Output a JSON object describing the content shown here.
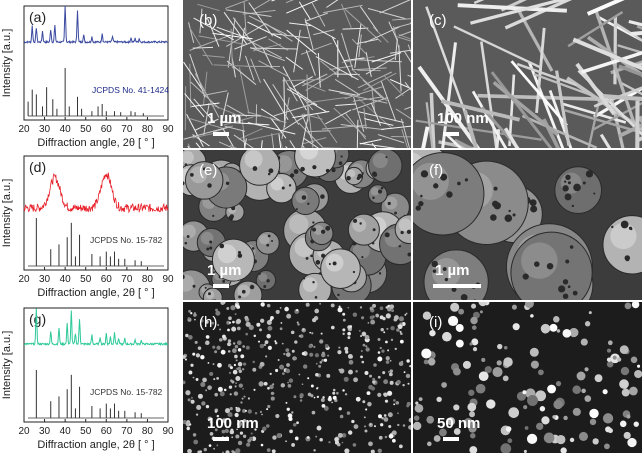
{
  "figure": {
    "xrd_panels": [
      {
        "label": "(a)",
        "reference": "JCPDS No. 41-1424",
        "sample_color": "#3b4aa0",
        "ref_color": "#333333"
      },
      {
        "label": "(d)",
        "reference": "JCPDS No. 15-782",
        "sample_color": "#e8202a",
        "ref_color": "#333333"
      },
      {
        "label": "(g)",
        "reference": "JCPDS No. 15-782",
        "sample_color": "#2fc99a",
        "ref_color": "#333333"
      }
    ],
    "sem_panels": [
      {
        "label": "(b)",
        "scale": "1 µm",
        "texture": "wires"
      },
      {
        "label": "(c)",
        "scale": "100 nm",
        "texture": "wires-zoom"
      },
      {
        "label": "(e)",
        "scale": "1 µm",
        "texture": "spheres"
      },
      {
        "label": "(f)",
        "scale": "1 µm",
        "texture": "spheres-zoom"
      },
      {
        "label": "(h)",
        "scale": "100 nm",
        "texture": "dots"
      },
      {
        "label": "(i)",
        "scale": "50 nm",
        "texture": "dots-zoom"
      }
    ],
    "axis": {
      "ylabel": "Intensity [a.u.]",
      "xlabel": "Diffraction angle, 2θ [ ° ]",
      "xticks": [
        "20",
        "30",
        "40",
        "50",
        "60",
        "70",
        "80",
        "90"
      ]
    }
  },
  "chart_data": [
    {
      "type": "line",
      "panel": "(a)",
      "xlim": [
        20,
        90
      ],
      "xlabel": "Diffraction angle, 2θ [ ° ]",
      "ylabel": "Intensity [a.u.]",
      "series": [
        {
          "peaks_2theta": [
            24,
            26,
            29,
            33,
            35,
            40,
            46,
            49,
            53,
            58,
            63,
            72,
            74,
            76
          ],
          "peaks_rel": [
            0.45,
            0.4,
            0.3,
            0.35,
            0.45,
            1.0,
            0.9,
            0.2,
            0.15,
            0.25,
            0.15,
            0.12,
            0.1,
            0.1
          ]
        },
        {
          "name": "JCPDS No. 41-1424",
          "peaks_2theta": [
            22,
            24,
            26,
            29,
            31,
            34,
            36,
            40,
            42,
            46,
            48,
            53,
            56,
            58,
            60,
            64,
            67,
            72,
            74,
            78
          ],
          "peaks_rel": [
            0.3,
            0.55,
            0.45,
            0.2,
            0.6,
            0.35,
            0.15,
            1.0,
            0.2,
            0.4,
            0.15,
            0.1,
            0.2,
            0.25,
            0.1,
            0.1,
            0.08,
            0.1,
            0.08,
            0.06
          ]
        }
      ]
    },
    {
      "type": "line",
      "panel": "(d)",
      "xlim": [
        20,
        90
      ],
      "xlabel": "Diffraction angle, 2θ [ ° ]",
      "ylabel": "Intensity [a.u.]",
      "series": [
        {
          "peaks_2theta": [
            35,
            60
          ],
          "peaks_rel": [
            0.8,
            0.9
          ]
        },
        {
          "name": "JCPDS No. 15-782",
          "peaks_2theta": [
            26,
            33,
            37,
            41,
            43,
            45,
            47,
            53,
            57,
            60,
            62,
            64,
            66,
            69,
            74,
            77
          ],
          "peaks_rel": [
            1.0,
            0.35,
            0.45,
            0.6,
            0.9,
            0.2,
            0.65,
            0.25,
            0.2,
            0.3,
            0.2,
            0.3,
            0.15,
            0.15,
            0.12,
            0.1
          ]
        }
      ]
    },
    {
      "type": "line",
      "panel": "(g)",
      "xlim": [
        20,
        90
      ],
      "xlabel": "Diffraction angle, 2θ [ ° ]",
      "ylabel": "Intensity [a.u.]",
      "series": [
        {
          "peaks_2theta": [
            26,
            33,
            37,
            41,
            43,
            45,
            47,
            53,
            57,
            60,
            62,
            64,
            66,
            69,
            74,
            77
          ],
          "peaks_rel": [
            1.0,
            0.35,
            0.45,
            0.6,
            0.95,
            0.3,
            0.7,
            0.25,
            0.2,
            0.3,
            0.2,
            0.35,
            0.15,
            0.15,
            0.12,
            0.1
          ]
        },
        {
          "name": "JCPDS No. 15-782",
          "peaks_2theta": [
            26,
            33,
            37,
            41,
            43,
            45,
            47,
            53,
            57,
            60,
            62,
            64,
            66,
            69,
            74,
            77
          ],
          "peaks_rel": [
            1.0,
            0.35,
            0.45,
            0.6,
            0.9,
            0.2,
            0.65,
            0.25,
            0.2,
            0.3,
            0.2,
            0.3,
            0.15,
            0.15,
            0.12,
            0.1
          ]
        }
      ]
    }
  ]
}
